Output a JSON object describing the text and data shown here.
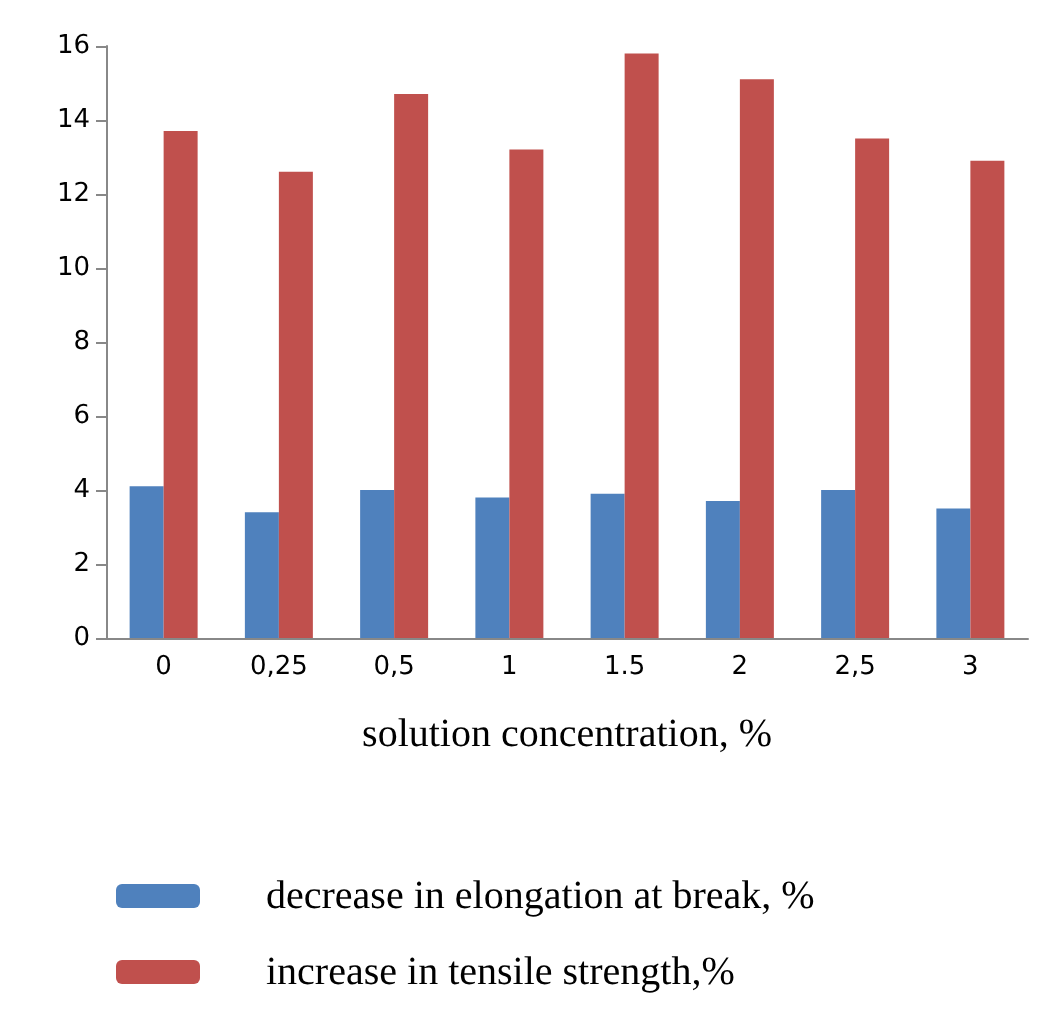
{
  "chart_data": {
    "type": "bar",
    "xlabel": "solution concentration, %",
    "categories": [
      "0",
      "0,25",
      "0,5",
      "1",
      "1.5",
      "2",
      "2,5",
      "3"
    ],
    "series": [
      {
        "name": "decrease in elongation at break, %",
        "color": "#4f81bd",
        "values": [
          4.1,
          3.4,
          4.0,
          3.8,
          3.9,
          3.7,
          4.0,
          3.5
        ]
      },
      {
        "name": "increase in tensile strength,%",
        "color": "#c0504d",
        "values": [
          13.7,
          12.6,
          14.7,
          13.2,
          15.8,
          15.1,
          13.5,
          12.9
        ]
      }
    ],
    "ylim": [
      0,
      16
    ],
    "yticks": [
      0,
      2,
      4,
      6,
      8,
      10,
      12,
      14,
      16
    ],
    "grid": false,
    "legend": "bottom"
  }
}
